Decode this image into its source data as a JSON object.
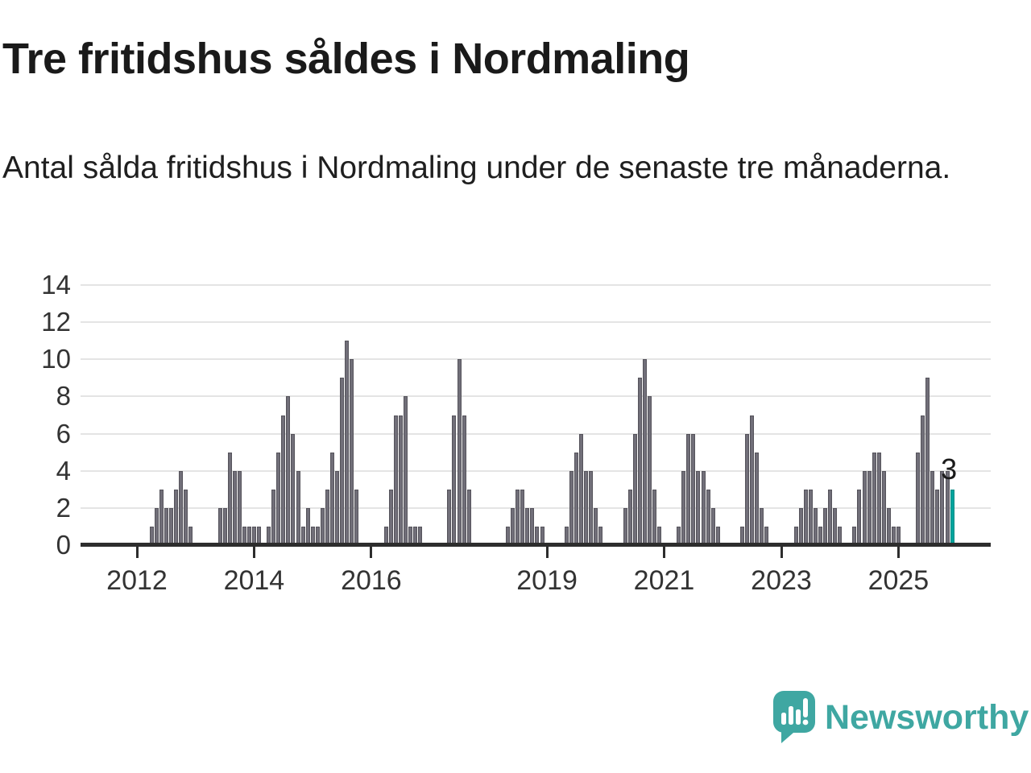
{
  "title": "Tre fritidshus såldes i Nordmaling",
  "subtitle": "Antal sålda fritidshus i Nordmaling under de senaste tre månaderna.",
  "annotation": {
    "last_value_label": "3"
  },
  "logo": {
    "text": "Newsworthy"
  },
  "colors": {
    "bar": "#716f79",
    "bar_border": "#55535b",
    "highlight": "#00a49d",
    "text": "#1a1a1a",
    "axis": "#2d2d2d",
    "gridline": "#e4e4e4",
    "brand_teal": "#3fa7a2"
  },
  "chart_data": {
    "type": "bar",
    "title": "Tre fritidshus såldes i Nordmaling",
    "subtitle": "Antal sålda fritidshus i Nordmaling under de senaste tre månaderna.",
    "x_start_month": "2012-01",
    "x_end_month": "2025-12",
    "x_tick_labels": [
      "2012",
      "2014",
      "2016",
      "2019",
      "2021",
      "2023",
      "2025"
    ],
    "x_tick_month_indices": [
      0,
      24,
      48,
      84,
      108,
      132,
      156
    ],
    "y_ticks": [
      0,
      2,
      4,
      6,
      8,
      10,
      12,
      14
    ],
    "ylim": [
      0,
      14
    ],
    "grid": "horizontal",
    "highlight_last": true,
    "last_value": 3,
    "values": [
      0,
      0,
      0,
      1,
      2,
      3,
      2,
      2,
      3,
      4,
      3,
      1,
      0,
      0,
      0,
      0,
      0,
      2,
      2,
      5,
      4,
      4,
      1,
      1,
      1,
      1,
      0,
      1,
      3,
      5,
      7,
      8,
      6,
      4,
      1,
      2,
      1,
      1,
      2,
      3,
      5,
      4,
      9,
      11,
      10,
      3,
      0,
      0,
      0,
      0,
      0,
      1,
      3,
      7,
      7,
      8,
      1,
      1,
      1,
      0,
      0,
      0,
      0,
      0,
      3,
      7,
      10,
      7,
      3,
      0,
      0,
      0,
      0,
      0,
      0,
      0,
      1,
      2,
      3,
      3,
      2,
      2,
      1,
      1,
      0,
      0,
      0,
      0,
      1,
      4,
      5,
      6,
      4,
      4,
      2,
      1,
      0,
      0,
      0,
      0,
      2,
      3,
      6,
      9,
      10,
      8,
      3,
      1,
      0,
      0,
      0,
      1,
      4,
      6,
      6,
      4,
      4,
      3,
      2,
      1,
      0,
      0,
      0,
      0,
      1,
      6,
      7,
      5,
      2,
      1,
      0,
      0,
      0,
      0,
      0,
      1,
      2,
      3,
      3,
      2,
      1,
      2,
      3,
      2,
      1,
      0,
      0,
      1,
      3,
      4,
      4,
      5,
      5,
      4,
      2,
      1,
      1,
      0,
      0,
      0,
      5,
      7,
      9,
      4,
      3,
      4,
      4,
      3
    ]
  }
}
